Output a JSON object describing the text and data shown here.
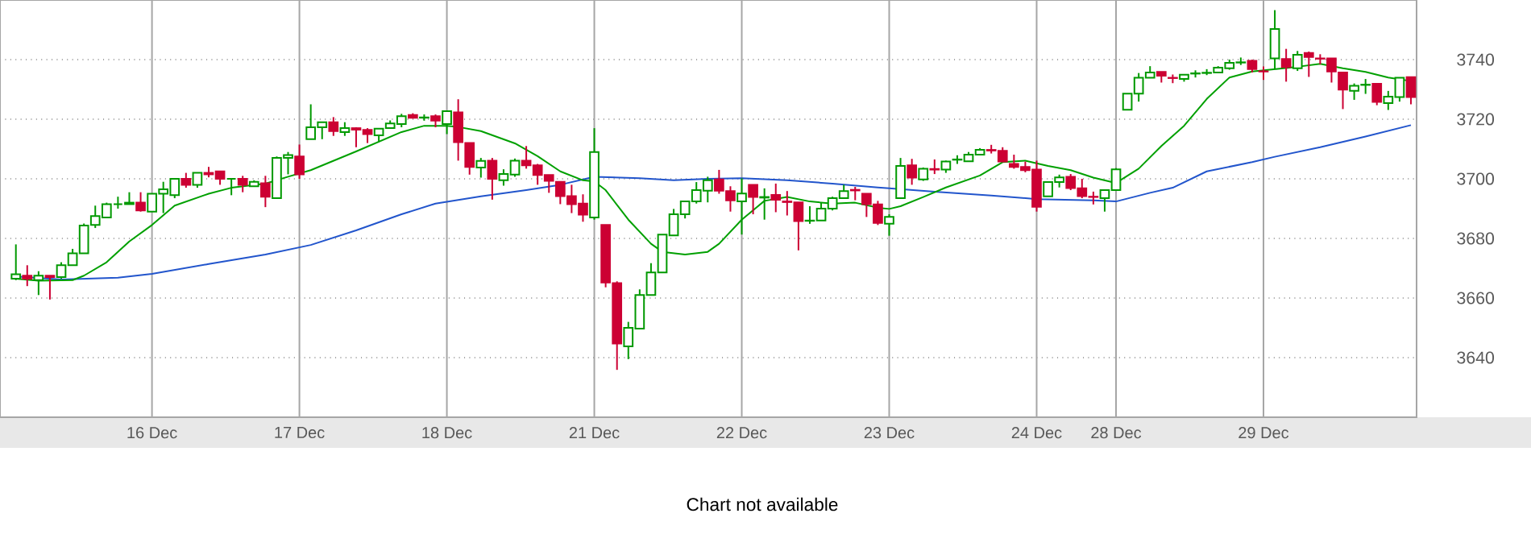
{
  "chart_data": {
    "type": "candlestick",
    "ylim": [
      3620,
      3760
    ],
    "categories": [
      null,
      null,
      null,
      null,
      null,
      null,
      null,
      null,
      null,
      null,
      null,
      null,
      "16 Dec",
      null,
      null,
      null,
      null,
      null,
      null,
      null,
      null,
      null,
      null,
      null,
      null,
      "17 Dec",
      null,
      null,
      null,
      null,
      null,
      null,
      null,
      null,
      null,
      null,
      null,
      null,
      "18 Dec",
      null,
      null,
      null,
      null,
      null,
      null,
      null,
      null,
      null,
      null,
      null,
      null,
      "21 Dec",
      null,
      null,
      null,
      null,
      null,
      null,
      null,
      null,
      null,
      null,
      null,
      null,
      "22 Dec",
      null,
      null,
      null,
      null,
      null,
      null,
      null,
      null,
      null,
      null,
      null,
      null,
      "23 Dec",
      null,
      null,
      null,
      null,
      null,
      null,
      null,
      null,
      null,
      null,
      null,
      null,
      "24 Dec",
      null,
      null,
      null,
      null,
      null,
      null,
      "28 Dec",
      null,
      null,
      null,
      null,
      null,
      null,
      null,
      null,
      null,
      null,
      null,
      null,
      "29 Dec",
      null,
      null,
      null,
      null,
      null,
      null,
      null,
      null,
      null,
      null,
      null,
      null,
      null
    ],
    "yticks": [
      3640,
      3660,
      3680,
      3700,
      3720,
      3740
    ],
    "grid": true,
    "annotations": [
      "Chart not available"
    ],
    "series": [
      {
        "type": "line",
        "color": "#2255cc",
        "values": [
          3667.2,
          null,
          null,
          null,
          3666.2,
          null,
          null,
          null,
          null,
          3666.8,
          null,
          null,
          3668.1,
          null,
          null,
          null,
          null,
          3671.4,
          null,
          null,
          null,
          null,
          3674.6,
          null,
          null,
          null,
          3677.8,
          null,
          null,
          null,
          3682.7,
          null,
          null,
          null,
          3688.1,
          null,
          null,
          3691.7,
          null,
          null,
          null,
          3694.1,
          null,
          null,
          null,
          3696.2,
          null,
          null,
          3698,
          null,
          null,
          3700.7,
          null,
          null,
          null,
          3700.2,
          null,
          null,
          3699.5,
          null,
          null,
          3700,
          null,
          null,
          3700.2,
          null,
          null,
          null,
          3699.5,
          null,
          null,
          null,
          3698.4,
          null,
          null,
          null,
          3697.1,
          3696.8,
          null,
          null,
          null,
          3695.7,
          null,
          null,
          null,
          null,
          3694.4,
          null,
          null,
          null,
          3693.2,
          null,
          null,
          null,
          null,
          3692.8,
          null,
          3692.4,
          null,
          null,
          3695.3,
          null,
          3697,
          null,
          null,
          3702.5,
          null,
          null,
          null,
          3705.6,
          null,
          3707.4,
          null,
          null,
          null,
          3710.6,
          null,
          null,
          null,
          3714.2,
          null,
          null,
          null,
          3718
        ]
      },
      {
        "type": "line",
        "color": "#00a000",
        "values": [
          3666.5,
          null,
          3665.8,
          null,
          null,
          3666,
          3667.5,
          null,
          3672,
          null,
          3679,
          null,
          3684.5,
          null,
          3691,
          null,
          null,
          3695,
          null,
          3697,
          null,
          null,
          3698.4,
          null,
          3700.7,
          null,
          3702.9,
          null,
          null,
          null,
          3709.2,
          null,
          null,
          null,
          3715.7,
          null,
          3717.8,
          null,
          3717.8,
          3717.4,
          null,
          3716,
          null,
          null,
          3711.9,
          null,
          3707.6,
          null,
          3702.5,
          null,
          3699.5,
          3699.1,
          3696.2,
          null,
          3686.3,
          null,
          3678.2,
          3675.5,
          null,
          3674.6,
          null,
          3675.5,
          3678.2,
          null,
          3686.3,
          null,
          3692.6,
          null,
          3693.9,
          null,
          3692.4,
          null,
          3691.7,
          null,
          3692,
          null,
          3690.3,
          3689.9,
          3690.8,
          null,
          3693.9,
          null,
          3697.1,
          null,
          null,
          3701.1,
          null,
          3705.6,
          null,
          3706.1,
          null,
          3704.3,
          null,
          3702.9,
          null,
          3700.4,
          null,
          3698.6,
          null,
          3703.4,
          null,
          3711,
          null,
          3717.8,
          null,
          3726.8,
          null,
          3734,
          null,
          3736,
          null,
          3736.8,
          null,
          3737.6,
          null,
          3738.6,
          null,
          3737.1,
          null,
          3735.9,
          null,
          3734,
          null,
          3732.8
        ]
      },
      {
        "ohlc": [
          [
            3666.5,
            3678,
            3666,
            3668
          ],
          [
            3667.5,
            3671,
            3664,
            3666.5
          ],
          [
            3666,
            3669,
            3661,
            3667.5
          ],
          [
            3667.5,
            3667.5,
            3659.5,
            3667
          ],
          [
            3667,
            3672,
            3666.5,
            3671
          ],
          [
            3671,
            3676.5,
            3671,
            3675
          ],
          [
            3675,
            3685,
            3675,
            3684.3
          ],
          [
            3684.5,
            3691,
            3683.5,
            3687.5
          ],
          [
            3687,
            3692,
            3687,
            3691.5
          ],
          [
            3691.5,
            3694,
            3690,
            3691.5
          ],
          [
            3691.5,
            3695.5,
            3691.5,
            3692
          ],
          [
            3692,
            3695.5,
            3689,
            3689.4
          ],
          [
            3689,
            3695,
            3689,
            3695
          ],
          [
            3695,
            3699,
            3688.5,
            3696.5
          ],
          [
            3694.5,
            3700,
            3693.5,
            3700
          ],
          [
            3700,
            3702,
            3697,
            3698
          ],
          [
            3698,
            3702,
            3697,
            3702
          ],
          [
            3702,
            3704,
            3700.5,
            3701.5
          ],
          [
            3702.5,
            3702.5,
            3698,
            3700
          ],
          [
            3700,
            3700,
            3694.5,
            3700
          ],
          [
            3700,
            3701,
            3695.5,
            3698
          ],
          [
            3697.5,
            3699.5,
            3697.5,
            3699
          ],
          [
            3698.5,
            3701,
            3690.5,
            3694
          ],
          [
            3693.5,
            3707.5,
            3693.5,
            3707
          ],
          [
            3707,
            3709,
            3701.5,
            3708
          ],
          [
            3707.5,
            3711.5,
            3700,
            3701.5
          ],
          [
            3713.3,
            3725,
            3713.3,
            3717.3
          ],
          [
            3717.3,
            3719,
            3713.3,
            3719
          ],
          [
            3719,
            3720.7,
            3714.4,
            3716
          ],
          [
            3715.7,
            3719,
            3714.4,
            3717
          ],
          [
            3717,
            3717.3,
            3710.6,
            3716.5
          ],
          [
            3716.4,
            3717,
            3712,
            3715
          ],
          [
            3714.6,
            3716.8,
            3712.4,
            3716.8
          ],
          [
            3717,
            3719.6,
            3717,
            3718.6
          ],
          [
            3718.4,
            3721.8,
            3717.3,
            3721
          ],
          [
            3721.4,
            3722,
            3720.2,
            3720.5
          ],
          [
            3720.5,
            3721.6,
            3719.5,
            3720.6
          ],
          [
            3721,
            3721.6,
            3717.3,
            3719.5
          ],
          [
            3718.4,
            3722.7,
            3715,
            3722.7
          ],
          [
            3722.3,
            3726.7,
            3706.1,
            3712.3
          ],
          [
            3712,
            3712,
            3701.4,
            3704
          ],
          [
            3703.8,
            3707,
            3700.4,
            3706
          ],
          [
            3706.1,
            3707,
            3693,
            3700
          ],
          [
            3699.5,
            3703.2,
            3697.7,
            3701.6
          ],
          [
            3701.4,
            3706.8,
            3700.7,
            3706.1
          ],
          [
            3706.1,
            3711,
            3703.4,
            3704.5
          ],
          [
            3704.5,
            3705,
            3698,
            3701.3
          ],
          [
            3701.3,
            3701.3,
            3695.3,
            3699.3
          ],
          [
            3699,
            3699,
            3691.5,
            3694.2
          ],
          [
            3694.2,
            3698,
            3688.5,
            3691.5
          ],
          [
            3691.7,
            3694.8,
            3685.6,
            3688
          ],
          [
            3687,
            3717,
            3686.3,
            3709
          ],
          [
            3684.5,
            3684.5,
            3663.6,
            3665.2
          ],
          [
            3665,
            3665.6,
            3635.9,
            3644.7
          ],
          [
            3643.8,
            3652,
            3639.5,
            3650
          ],
          [
            3649.7,
            3662.9,
            3649.7,
            3661
          ],
          [
            3661,
            3671.7,
            3661,
            3668.6
          ],
          [
            3668.6,
            3681.3,
            3668.6,
            3681.3
          ],
          [
            3681,
            3689.9,
            3681,
            3688.1
          ],
          [
            3688.1,
            3692.4,
            3686.7,
            3692.4
          ],
          [
            3692.4,
            3698.9,
            3691.7,
            3696.2
          ],
          [
            3696,
            3700.7,
            3692.1,
            3699.5
          ],
          [
            3699.8,
            3703,
            3695,
            3696
          ],
          [
            3695.9,
            3697.5,
            3689,
            3692.8
          ],
          [
            3692.4,
            3700.2,
            3681.3,
            3695.1
          ],
          [
            3698,
            3698,
            3688.1,
            3693.9
          ],
          [
            3693.7,
            3696.8,
            3686.3,
            3693.9
          ],
          [
            3694.6,
            3698.4,
            3688.8,
            3693
          ],
          [
            3692.4,
            3695.9,
            3687.7,
            3692.2
          ],
          [
            3692.1,
            3692.1,
            3676,
            3685.8
          ],
          [
            3685.9,
            3690.8,
            3684.9,
            3686
          ],
          [
            3686,
            3692.1,
            3686,
            3690
          ],
          [
            3690,
            3694,
            3689.4,
            3693.5
          ],
          [
            3693.5,
            3698,
            3693.5,
            3695.9
          ],
          [
            3696.3,
            3697.3,
            3692.8,
            3696.1
          ],
          [
            3695,
            3695,
            3687.2,
            3691.5
          ],
          [
            3691.4,
            3692.6,
            3684.5,
            3685.2
          ],
          [
            3684.9,
            3688.1,
            3680.9,
            3687.2
          ],
          [
            3693.5,
            3707,
            3693.5,
            3704.3
          ],
          [
            3704.5,
            3706.7,
            3698,
            3700.4
          ],
          [
            3699.8,
            3703.8,
            3699.3,
            3703.4
          ],
          [
            3703.3,
            3706.5,
            3701.6,
            3703.1
          ],
          [
            3703.1,
            3706.1,
            3702,
            3705.8
          ],
          [
            3706.4,
            3707.9,
            3705,
            3706.5
          ],
          [
            3705.9,
            3709,
            3705.9,
            3708.1
          ],
          [
            3708.1,
            3710.3,
            3708.1,
            3709.7
          ],
          [
            3709.7,
            3711.4,
            3708.5,
            3709.5
          ],
          [
            3709.4,
            3710.6,
            3705.6,
            3705.8
          ],
          [
            3705,
            3708.1,
            3703.4,
            3704
          ],
          [
            3704,
            3705.8,
            3702.2,
            3702.9
          ],
          [
            3703.1,
            3706.1,
            3689,
            3690.6
          ],
          [
            3694.1,
            3698.9,
            3694.1,
            3698.9
          ],
          [
            3698.9,
            3701.4,
            3697.1,
            3700.5
          ],
          [
            3700.7,
            3701.6,
            3696.2,
            3696.9
          ],
          [
            3696.8,
            3700,
            3693.5,
            3694.2
          ],
          [
            3694,
            3695.7,
            3691.4,
            3693.9
          ],
          [
            3693.5,
            3696.2,
            3689,
            3696.2
          ],
          [
            3696.2,
            3703.6,
            3696.2,
            3703.2
          ],
          [
            3723.2,
            3728.6,
            3723.2,
            3728.6
          ],
          [
            3728.6,
            3735.5,
            3725.9,
            3733.9
          ],
          [
            3733.9,
            3737.8,
            3733.9,
            3735.7
          ],
          [
            3735.9,
            3735.9,
            3732.3,
            3734.6
          ],
          [
            3733.9,
            3735,
            3732.1,
            3733.8
          ],
          [
            3733.5,
            3734.9,
            3732.6,
            3734.9
          ],
          [
            3735.3,
            3736.4,
            3734,
            3735.4
          ],
          [
            3735.5,
            3736.8,
            3734.8,
            3735.6
          ],
          [
            3735.7,
            3737.8,
            3735.7,
            3737.3
          ],
          [
            3737.1,
            3740,
            3736.6,
            3738.9
          ],
          [
            3739,
            3740.7,
            3738.2,
            3739.1
          ],
          [
            3739.6,
            3740,
            3735.7,
            3736.8
          ],
          [
            3736.1,
            3737.7,
            3733.2,
            3736
          ],
          [
            3740.4,
            3756.6,
            3736.8,
            3750.3
          ],
          [
            3740.2,
            3743.6,
            3732.6,
            3737.5
          ],
          [
            3737.1,
            3742.9,
            3736.2,
            3741.6
          ],
          [
            3742.2,
            3742.7,
            3734.2,
            3740.9
          ],
          [
            3740.4,
            3741.8,
            3738.4,
            3740.3
          ],
          [
            3740.4,
            3740.4,
            3732.3,
            3736
          ],
          [
            3735.7,
            3735.7,
            3723.4,
            3729.9
          ],
          [
            3729.5,
            3732,
            3726.5,
            3731.2
          ],
          [
            3731.5,
            3733.5,
            3728.5,
            3731.6
          ],
          [
            3731.9,
            3731.9,
            3724.7,
            3725.8
          ],
          [
            3725.4,
            3729.5,
            3723.1,
            3727.6
          ],
          [
            3727.4,
            3733.9,
            3725.9,
            3733.9
          ],
          [
            3734.1,
            3734.1,
            3725,
            3727.4
          ]
        ],
        "colors": [
          "#009900",
          "#cc0033",
          "#009900",
          "#cc0033",
          "#009900",
          "#009900",
          "#009900",
          "#009900",
          "#009900",
          "#009900",
          "#009900",
          "#cc0033",
          "#009900",
          "#009900",
          "#009900",
          "#cc0033",
          "#009900",
          "#cc0033",
          "#cc0033",
          "#009900",
          "#cc0033",
          "#009900",
          "#cc0033",
          "#009900",
          "#009900",
          "#cc0033",
          "#009900",
          "#009900",
          "#cc0033",
          "#009900",
          "#cc0033",
          "#cc0033",
          "#009900",
          "#009900",
          "#009900",
          "#cc0033",
          "#009900",
          "#cc0033",
          "#009900",
          "#cc0033",
          "#cc0033",
          "#009900",
          "#cc0033",
          "#009900",
          "#009900",
          "#cc0033",
          "#cc0033",
          "#cc0033",
          "#cc0033",
          "#cc0033",
          "#cc0033",
          "#009900",
          "#cc0033",
          "#cc0033",
          "#009900",
          "#009900",
          "#009900",
          "#009900",
          "#009900",
          "#009900",
          "#009900",
          "#009900",
          "#cc0033",
          "#cc0033",
          "#009900",
          "#cc0033",
          "#009900",
          "#cc0033",
          "#cc0033",
          "#cc0033",
          "#009900",
          "#009900",
          "#009900",
          "#009900",
          "#cc0033",
          "#cc0033",
          "#cc0033",
          "#009900",
          "#009900",
          "#cc0033",
          "#009900",
          "#cc0033",
          "#009900",
          "#009900",
          "#009900",
          "#009900",
          "#cc0033",
          "#cc0033",
          "#cc0033",
          "#cc0033",
          "#cc0033",
          "#009900",
          "#009900",
          "#cc0033",
          "#cc0033",
          "#cc0033",
          "#009900",
          "#009900",
          "#009900",
          "#009900",
          "#009900",
          "#cc0033",
          "#cc0033",
          "#009900",
          "#009900",
          "#009900",
          "#009900",
          "#009900",
          "#009900",
          "#cc0033",
          "#cc0033",
          "#009900",
          "#cc0033",
          "#009900",
          "#cc0033",
          "#cc0033",
          "#cc0033",
          "#cc0033",
          "#009900",
          "#009900",
          "#cc0033",
          "#009900",
          "#009900",
          "#cc0033"
        ]
      }
    ]
  }
}
